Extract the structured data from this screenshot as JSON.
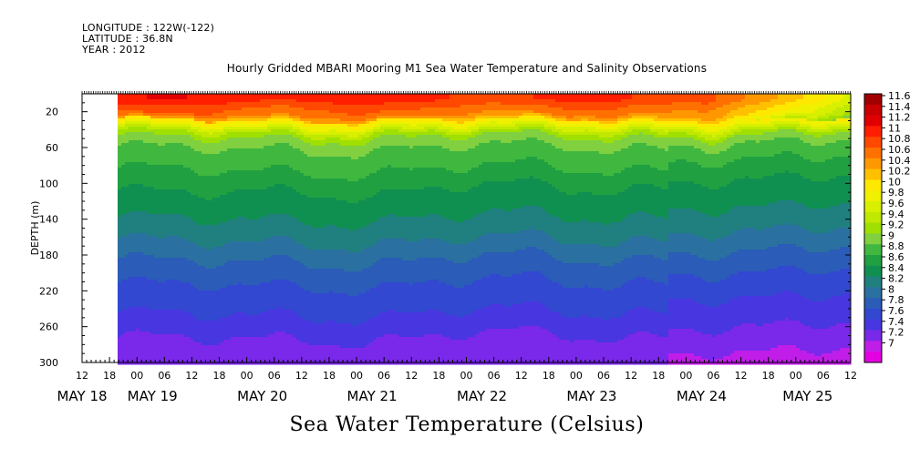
{
  "header": {
    "longitude": "LONGITUDE : 122W(-122)",
    "latitude": "LATITUDE : 36.8N",
    "year": "YEAR : 2012"
  },
  "chart_data": {
    "type": "heatmap",
    "title": "Hourly Gridded MBARI Mooring M1 Sea Water Temperature and Salinity Observations",
    "xlabel": "Sea Water Temperature (Celsius)",
    "ylabel": "DEPTH (m)",
    "x_axis": {
      "start": "2012-05-18T12:00",
      "end": "2012-05-25T12:00",
      "data_start": "2012-05-18T18:00",
      "hour_ticks": [
        "12",
        "18",
        "00",
        "06",
        "12",
        "18",
        "00",
        "06",
        "12",
        "18",
        "00",
        "06",
        "12",
        "18",
        "00",
        "06",
        "12",
        "18",
        "00",
        "06",
        "12",
        "18",
        "00",
        "06",
        "12",
        "18",
        "00",
        "06",
        "12"
      ],
      "day_labels": [
        "MAY 18",
        "MAY 19",
        "MAY 20",
        "MAY 21",
        "MAY 22",
        "MAY 23",
        "MAY 24",
        "MAY 25"
      ]
    },
    "y_axis": {
      "range": [
        0,
        300
      ],
      "inverted": true,
      "ticks": [
        20,
        60,
        100,
        140,
        180,
        220,
        260,
        300
      ]
    },
    "colorbar": {
      "levels": [
        "11.6",
        "11.4",
        "11.2",
        "11",
        "10.8",
        "10.6",
        "10.4",
        "10.2",
        "10",
        "9.8",
        "9.6",
        "9.4",
        "9.2",
        "9",
        "8.8",
        "8.6",
        "8.4",
        "8.2",
        "8",
        "7.8",
        "7.6",
        "7.4",
        "7.2",
        "7"
      ],
      "colors": [
        "#a00000",
        "#c80000",
        "#e00000",
        "#ff1e00",
        "#ff4800",
        "#ff7000",
        "#ff9800",
        "#ffc000",
        "#ffe800",
        "#f0f000",
        "#d8f000",
        "#c0e800",
        "#a0e000",
        "#80d040",
        "#40b840",
        "#20a040",
        "#109050",
        "#208080",
        "#2a70a0",
        "#2a5cb8",
        "#3248d0",
        "#4836e0",
        "#7a28ea",
        "#c01ee8",
        "#e400e0"
      ]
    },
    "profile": {
      "depth_m": [
        5,
        12,
        22,
        30,
        45,
        60,
        80,
        100,
        120,
        140,
        160,
        180,
        200,
        220,
        240,
        260,
        280,
        300
      ],
      "temperature": [
        10.9,
        10.7,
        10.5,
        10.0,
        9.2,
        8.95,
        8.8,
        8.6,
        8.5,
        8.35,
        8.2,
        8.0,
        7.85,
        7.7,
        7.6,
        7.45,
        7.3,
        7.2
      ]
    }
  }
}
